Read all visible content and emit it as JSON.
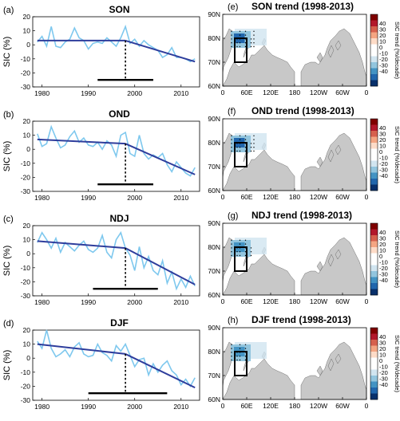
{
  "chart_data": [
    {
      "type": "line",
      "panel_label": "(a)",
      "title": "SON",
      "ylabel": "SIC (%)",
      "xlim": [
        1978,
        2014
      ],
      "ylim": [
        -30,
        20
      ],
      "x_ticks": [
        "1980",
        "1990",
        "2000",
        "2010"
      ],
      "y_ticks": [
        "20",
        "10",
        "0",
        "-10",
        "-20",
        "-30"
      ],
      "x": [
        1979,
        1980,
        1981,
        1982,
        1983,
        1984,
        1985,
        1986,
        1987,
        1988,
        1989,
        1990,
        1991,
        1992,
        1993,
        1994,
        1995,
        1996,
        1997,
        1998,
        1999,
        2000,
        2001,
        2002,
        2003,
        2004,
        2005,
        2006,
        2007,
        2008,
        2009,
        2010,
        2011,
        2012,
        2013
      ],
      "series": [
        {
          "values": [
            2,
            6,
            -1,
            13,
            -1,
            -2,
            2,
            4,
            12,
            5,
            3,
            -3,
            1,
            2,
            1,
            5,
            2,
            -1,
            5,
            13,
            1,
            4,
            -1,
            3,
            0,
            -2,
            -4,
            -9,
            -7,
            -2,
            -9,
            -9,
            -10,
            -12,
            -10
          ]
        }
      ],
      "trend_segments": [
        [
          [
            1979,
            3
          ],
          [
            1998,
            3
          ]
        ],
        [
          [
            1998,
            3
          ],
          [
            2013,
            -12
          ]
        ]
      ],
      "breakpoint_year": 1998,
      "uncertainty_interval": [
        1992,
        2004
      ]
    },
    {
      "type": "line",
      "panel_label": "(b)",
      "title": "OND",
      "ylabel": "SIC (%)",
      "xlim": [
        1978,
        2014
      ],
      "ylim": [
        -30,
        20
      ],
      "x_ticks": [
        "1980",
        "1990",
        "2000",
        "2010"
      ],
      "y_ticks": [
        "20",
        "10",
        "0",
        "-10",
        "-20",
        "-30"
      ],
      "x": [
        1979,
        1980,
        1981,
        1982,
        1983,
        1984,
        1985,
        1986,
        1987,
        1988,
        1989,
        1990,
        1991,
        1992,
        1993,
        1994,
        1995,
        1996,
        1997,
        1998,
        1999,
        2000,
        2001,
        2002,
        2003,
        2004,
        2005,
        2006,
        2007,
        2008,
        2009,
        2010,
        2011,
        2012,
        2013
      ],
      "series": [
        {
          "values": [
            11,
            2,
            4,
            16,
            8,
            1,
            3,
            9,
            13,
            5,
            8,
            3,
            2,
            5,
            0,
            6,
            3,
            -5,
            10,
            12,
            -3,
            -5,
            10,
            -3,
            -7,
            -4,
            -6,
            -3,
            -11,
            -16,
            -9,
            -13,
            -17,
            -19,
            -13
          ]
        }
      ],
      "trend_segments": [
        [
          [
            1979,
            7
          ],
          [
            1998,
            4
          ]
        ],
        [
          [
            1998,
            4
          ],
          [
            2013,
            -18
          ]
        ]
      ],
      "breakpoint_year": 1998,
      "uncertainty_interval": [
        1992,
        2004
      ]
    },
    {
      "type": "line",
      "panel_label": "(c)",
      "title": "NDJ",
      "ylabel": "SIC (%)",
      "xlim": [
        1978,
        2014
      ],
      "ylim": [
        -30,
        20
      ],
      "x_ticks": [
        "1980",
        "1990",
        "2000",
        "2010"
      ],
      "y_ticks": [
        "20",
        "10",
        "0",
        "-10",
        "-20",
        "-30"
      ],
      "x": [
        1979,
        1980,
        1981,
        1982,
        1983,
        1984,
        1985,
        1986,
        1987,
        1988,
        1989,
        1990,
        1991,
        1992,
        1993,
        1994,
        1995,
        1996,
        1997,
        1998,
        1999,
        2000,
        2001,
        2002,
        2003,
        2004,
        2005,
        2006,
        2007,
        2008,
        2009,
        2010,
        2011,
        2012,
        2013
      ],
      "series": [
        {
          "values": [
            8,
            15,
            10,
            4,
            11,
            1,
            8,
            5,
            2,
            6,
            9,
            3,
            1,
            4,
            13,
            1,
            -3,
            10,
            15,
            4,
            -1,
            -12,
            5,
            -10,
            -2,
            -12,
            -15,
            -5,
            -21,
            -13,
            -25,
            -18,
            -24,
            -16,
            -23
          ]
        }
      ],
      "trend_segments": [
        [
          [
            1979,
            9
          ],
          [
            1998,
            4
          ]
        ],
        [
          [
            1998,
            4
          ],
          [
            2013,
            -22
          ]
        ]
      ],
      "breakpoint_year": 1998,
      "uncertainty_interval": [
        1991,
        2005
      ]
    },
    {
      "type": "line",
      "panel_label": "(d)",
      "title": "DJF",
      "ylabel": "SIC (%)",
      "xlim": [
        1978,
        2014
      ],
      "ylim": [
        -30,
        20
      ],
      "x_ticks": [
        "1980",
        "1990",
        "2000",
        "2010"
      ],
      "y_ticks": [
        "20",
        "10",
        "0",
        "-10",
        "-20",
        "-30"
      ],
      "x": [
        1979,
        1980,
        1981,
        1982,
        1983,
        1984,
        1985,
        1986,
        1987,
        1988,
        1989,
        1990,
        1991,
        1992,
        1993,
        1994,
        1995,
        1996,
        1997,
        1998,
        1999,
        2000,
        2001,
        2002,
        2003,
        2004,
        2005,
        2006,
        2007,
        2008,
        2009,
        2010,
        2011,
        2012,
        2013
      ],
      "series": [
        {
          "values": [
            12,
            7,
            20,
            7,
            1,
            3,
            6,
            1,
            8,
            11,
            3,
            1,
            2,
            10,
            4,
            2,
            -2,
            9,
            5,
            10,
            2,
            -6,
            -1,
            0,
            -12,
            -4,
            -10,
            -5,
            -2,
            -9,
            -12,
            -19,
            -15,
            -20,
            -14
          ]
        }
      ],
      "trend_segments": [
        [
          [
            1979,
            10
          ],
          [
            1998,
            3
          ]
        ],
        [
          [
            1998,
            3
          ],
          [
            2013,
            -21
          ]
        ]
      ],
      "breakpoint_year": 1998,
      "uncertainty_interval": [
        1990,
        2007
      ]
    }
  ],
  "maps": [
    {
      "panel_label": "(e)",
      "title": "SON  trend (1998-2013)",
      "lat_ticks": [
        "90N",
        "80N",
        "70N",
        "60N"
      ],
      "lon_ticks": [
        "0",
        "60E",
        "120E",
        "180",
        "120W",
        "60W",
        "0"
      ]
    },
    {
      "panel_label": "(f)",
      "title": "OND  trend (1998-2013)",
      "lat_ticks": [
        "90N",
        "80N",
        "70N",
        "60N"
      ],
      "lon_ticks": [
        "0",
        "60E",
        "120E",
        "180",
        "120W",
        "60W",
        "0"
      ]
    },
    {
      "panel_label": "(g)",
      "title": "NDJ  trend (1998-2013)",
      "lat_ticks": [
        "90N",
        "80N",
        "70N",
        "60N"
      ],
      "lon_ticks": [
        "0",
        "60E",
        "120E",
        "180",
        "120W",
        "60W",
        "0"
      ]
    },
    {
      "panel_label": "(h)",
      "title": "DJF  trend (1998-2013)",
      "lat_ticks": [
        "90N",
        "80N",
        "70N",
        "60N"
      ],
      "lon_ticks": [
        "0",
        "60E",
        "120E",
        "180",
        "120W",
        "60W",
        "0"
      ]
    }
  ],
  "colorbar": {
    "label": "SIC trend (%/decade)",
    "ticks": [
      "40",
      "30",
      "20",
      "10",
      "0",
      "-10",
      "-20",
      "-30",
      "-40"
    ],
    "colors": [
      "#7f0000",
      "#b2182b",
      "#d6604d",
      "#f4a582",
      "#fddbc7",
      "#ffffff",
      "#ffffff",
      "#d1e5f0",
      "#92c5de",
      "#4393c3",
      "#2166ac",
      "#08306b"
    ]
  },
  "colors": {
    "series": "#7ec8ee",
    "trend": "#2e3d9c",
    "land": "#c8c8c8",
    "box": "#000000"
  }
}
